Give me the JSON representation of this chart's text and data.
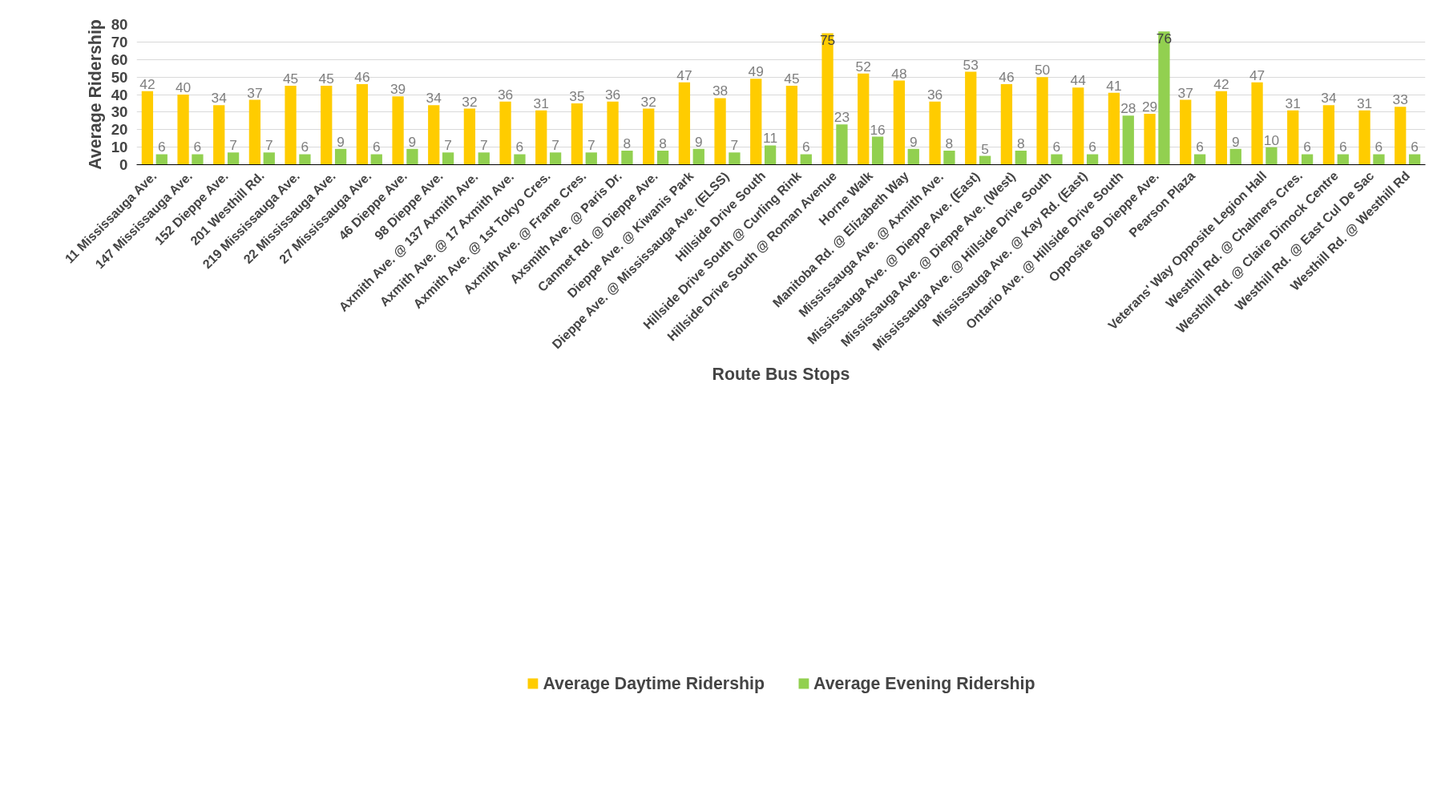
{
  "chart_data": {
    "type": "bar",
    "xlabel": "Route Bus Stops",
    "ylabel": "Average Ridership",
    "categories": [
      "11 Mississauga Ave.",
      "147 Mississauga Ave.",
      "152 Dieppe Ave.",
      "201 Westhill Rd.",
      "219 Mississauga Ave.",
      "22 Mississauga Ave.",
      "27 Mississauga Ave.",
      "46 Dieppe Ave.",
      "98 Dieppe Ave.",
      "Axmith Ave. @ 137 Axmith Ave.",
      "Axmith Ave. @ 17 Axmith Ave.",
      "Axmith Ave. @ 1st Tokyo Cres.",
      "Axmith Ave. @ Frame Cres.",
      "Axsmith Ave. @ Paris Dr.",
      "Canmet Rd. @ Dieppe Ave.",
      "Dieppe Ave. @ Kiwanis Park",
      "Dieppe Ave. @ Mississauga Ave. (ELSS)",
      "Hillside Drive South",
      "Hillside Drive South @ Curling Rink",
      "Hillside Drive South @ Roman Avenue",
      "Horne Walk",
      "Manitoba Rd. @ Elizabeth Way",
      "Mississauga Ave. @ Axmith Ave.",
      "Mississauga Ave. @ Dieppe Ave. (East)",
      "Mississauga Ave. @ Dieppe Ave. (West)",
      "Mississauga Ave. @ Hillside Drive South",
      "Mississauga Ave. @ Kay Rd. (East)",
      "Ontario Ave. @ Hillside Drive South",
      "Opposite 69 Dieppe Ave.",
      "Pearson Plaza",
      null,
      "Veterans' Way Opposite Legion Hall",
      "Westhill Rd. @ Chalmers Cres.",
      "Westhill Rd. @ Claire Dimock Centre",
      "Westhill Rd. @ East Cul De Sac",
      "Westhill Rd. @ Westhill Rd"
    ],
    "series": [
      {
        "name": "Average Daytime Ridership",
        "color": "#ffcc00",
        "values": [
          42,
          40,
          34,
          37,
          45,
          45,
          46,
          39,
          34,
          32,
          36,
          31,
          35,
          36,
          32,
          47,
          38,
          49,
          45,
          75,
          52,
          48,
          36,
          53,
          46,
          50,
          44,
          41,
          29,
          37,
          42,
          47,
          31,
          34,
          31,
          33
        ]
      },
      {
        "name": "Average Evening Ridership",
        "color": "#92d050",
        "values": [
          6,
          6,
          7,
          7,
          6,
          9,
          6,
          9,
          7,
          7,
          6,
          7,
          7,
          8,
          8,
          9,
          7,
          11,
          6,
          23,
          16,
          9,
          8,
          5,
          8,
          6,
          6,
          28,
          76,
          6,
          9,
          10,
          6,
          6,
          6,
          6
        ]
      }
    ],
    "ylim": [
      0,
      80
    ],
    "yticks": [
      0,
      10,
      20,
      30,
      40,
      50,
      60,
      70,
      80
    ],
    "grid": "y",
    "legend": "bottom",
    "data_labels": true
  }
}
